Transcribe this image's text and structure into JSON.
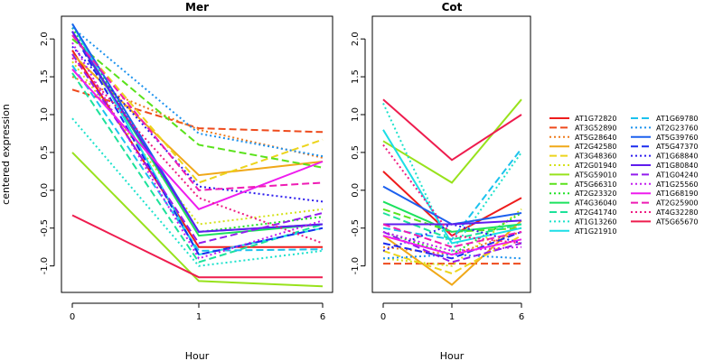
{
  "ylabel": "centered expression",
  "xlabel": "Hour",
  "chart_data": [
    {
      "type": "line",
      "title": "Mer",
      "xlabel": "Hour",
      "ylabel": "centered expression",
      "categories": [
        "0",
        "1",
        "6"
      ],
      "x": [
        0,
        1,
        6
      ],
      "ylim": [
        -1.35,
        2.3
      ],
      "yticks": [
        -1.0,
        -0.5,
        0.0,
        0.5,
        1.0,
        1.5,
        2.0
      ],
      "ytick_labels": [
        "-1.0",
        "-0.5",
        "0.0",
        "0.5",
        "1.0",
        "1.5",
        "2.0"
      ],
      "grid": false,
      "series": [
        {
          "name": "AT1G72820",
          "values": [
            1.85,
            -0.75,
            -0.75
          ]
        },
        {
          "name": "AT3G52890",
          "values": [
            1.33,
            0.82,
            0.77
          ]
        },
        {
          "name": "AT5G28640",
          "values": [
            1.5,
            0.8,
            0.43
          ]
        },
        {
          "name": "AT2G42580",
          "values": [
            1.8,
            0.2,
            0.38
          ]
        },
        {
          "name": "AT3G48360",
          "values": [
            2.05,
            0.1,
            0.67
          ]
        },
        {
          "name": "AT2G01940",
          "values": [
            1.7,
            -0.45,
            -0.25
          ]
        },
        {
          "name": "AT5G59010",
          "values": [
            0.5,
            -1.2,
            -1.27
          ]
        },
        {
          "name": "AT5G66310",
          "values": [
            2.0,
            0.6,
            0.3
          ]
        },
        {
          "name": "AT2G23320",
          "values": [
            2.15,
            -0.55,
            -0.35
          ]
        },
        {
          "name": "AT4G36040",
          "values": [
            2.1,
            -0.6,
            -0.45
          ]
        },
        {
          "name": "AT2G41740",
          "values": [
            1.55,
            -0.95,
            -0.45
          ]
        },
        {
          "name": "AT1G13260",
          "values": [
            0.95,
            -1.0,
            -0.8
          ]
        },
        {
          "name": "AT1G21910",
          "values": [
            2.2,
            -0.85,
            -0.5
          ]
        },
        {
          "name": "AT1G69780",
          "values": [
            1.65,
            -0.8,
            -0.78
          ]
        },
        {
          "name": "AT2G23760",
          "values": [
            2.15,
            0.75,
            0.45
          ]
        },
        {
          "name": "AT5G39760",
          "values": [
            2.2,
            -0.55,
            -0.45
          ]
        },
        {
          "name": "AT5G47370",
          "values": [
            2.1,
            -0.85,
            -0.5
          ]
        },
        {
          "name": "AT1G68840",
          "values": [
            1.9,
            0.05,
            -0.15
          ]
        },
        {
          "name": "AT1G80840",
          "values": [
            2.1,
            -0.55,
            -0.45
          ]
        },
        {
          "name": "AT1G04240",
          "values": [
            1.8,
            -0.7,
            -0.3
          ]
        },
        {
          "name": "AT1G25560",
          "values": [
            1.95,
            -0.9,
            -0.4
          ]
        },
        {
          "name": "AT1G68190",
          "values": [
            1.6,
            -0.25,
            0.38
          ]
        },
        {
          "name": "AT2G25900",
          "values": [
            2.05,
            0.0,
            0.1
          ]
        },
        {
          "name": "AT4G32280",
          "values": [
            1.75,
            -0.1,
            -0.7
          ]
        },
        {
          "name": "AT5G65670",
          "values": [
            -0.33,
            -1.15,
            -1.15
          ]
        }
      ]
    },
    {
      "type": "line",
      "title": "Cot",
      "xlabel": "Hour",
      "ylabel": "",
      "categories": [
        "0",
        "1",
        "6"
      ],
      "x": [
        0,
        1,
        6
      ],
      "ylim": [
        -1.35,
        2.3
      ],
      "yticks": [
        -1.0,
        -0.5,
        0.0,
        0.5,
        1.0,
        1.5,
        2.0
      ],
      "ytick_labels": [
        "-1.0",
        "-0.5",
        "0.0",
        "0.5",
        "1.0",
        "1.5",
        "2.0"
      ],
      "grid": false,
      "series": [
        {
          "name": "AT1G72820",
          "values": [
            0.25,
            -0.6,
            -0.1
          ]
        },
        {
          "name": "AT3G52890",
          "values": [
            -0.97,
            -0.97,
            -0.97
          ]
        },
        {
          "name": "AT5G28640",
          "values": [
            -0.75,
            -0.85,
            -0.55
          ]
        },
        {
          "name": "AT2G42580",
          "values": [
            -0.6,
            -1.25,
            -0.4
          ]
        },
        {
          "name": "AT3G48360",
          "values": [
            -0.8,
            -1.1,
            -0.6
          ]
        },
        {
          "name": "AT2G01940",
          "values": [
            -0.9,
            -1.0,
            -0.25
          ]
        },
        {
          "name": "AT5G59010",
          "values": [
            0.65,
            0.1,
            1.2
          ]
        },
        {
          "name": "AT5G66310",
          "values": [
            -0.25,
            -0.55,
            -0.5
          ]
        },
        {
          "name": "AT2G23320",
          "values": [
            -0.55,
            -0.85,
            -0.3
          ]
        },
        {
          "name": "AT4G36040",
          "values": [
            -0.15,
            -0.55,
            -0.45
          ]
        },
        {
          "name": "AT2G41740",
          "values": [
            -0.3,
            -0.65,
            -0.45
          ]
        },
        {
          "name": "AT1G13260",
          "values": [
            1.15,
            -0.8,
            0.5
          ]
        },
        {
          "name": "AT1G21910",
          "values": [
            0.8,
            -0.7,
            -0.5
          ]
        },
        {
          "name": "AT1G69780",
          "values": [
            -0.5,
            -0.65,
            0.55
          ]
        },
        {
          "name": "AT2G23760",
          "values": [
            -0.9,
            -0.85,
            -0.9
          ]
        },
        {
          "name": "AT5G39760",
          "values": [
            0.05,
            -0.45,
            -0.3
          ]
        },
        {
          "name": "AT5G47370",
          "values": [
            -0.7,
            -0.9,
            -0.55
          ]
        },
        {
          "name": "AT1G68840",
          "values": [
            -0.8,
            -0.45,
            -0.7
          ]
        },
        {
          "name": "AT1G80840",
          "values": [
            -0.45,
            -0.45,
            -0.4
          ]
        },
        {
          "name": "AT1G04240",
          "values": [
            -0.55,
            -0.95,
            -0.7
          ]
        },
        {
          "name": "AT1G25560",
          "values": [
            -0.55,
            -0.8,
            -0.75
          ]
        },
        {
          "name": "AT1G68190",
          "values": [
            -0.6,
            -0.85,
            -0.65
          ]
        },
        {
          "name": "AT2G25900",
          "values": [
            -0.45,
            -0.75,
            -0.55
          ]
        },
        {
          "name": "AT4G32280",
          "values": [
            0.6,
            -0.6,
            -0.7
          ]
        },
        {
          "name": "AT5G65670",
          "values": [
            1.2,
            0.4,
            1.0
          ]
        }
      ]
    }
  ],
  "legend": {
    "placement": "right",
    "entries": [
      {
        "name": "AT1G72820",
        "color": "#ee1c1c",
        "dash": "solid"
      },
      {
        "name": "AT3G52890",
        "color": "#ee4a1c",
        "dash": "long-dash"
      },
      {
        "name": "AT5G28640",
        "color": "#ee7a1c",
        "dash": "dotted"
      },
      {
        "name": "AT2G42580",
        "color": "#f0a818",
        "dash": "solid"
      },
      {
        "name": "AT3G48360",
        "color": "#ecd41c",
        "dash": "long-dash"
      },
      {
        "name": "AT2G01940",
        "color": "#d4e21c",
        "dash": "dotted"
      },
      {
        "name": "AT5G59010",
        "color": "#98e21c",
        "dash": "solid"
      },
      {
        "name": "AT5G66310",
        "color": "#5ae21c",
        "dash": "long-dash"
      },
      {
        "name": "AT2G23320",
        "color": "#22e228",
        "dash": "dotted"
      },
      {
        "name": "AT4G36040",
        "color": "#1ce25e",
        "dash": "solid"
      },
      {
        "name": "AT2G41740",
        "color": "#1ce29a",
        "dash": "long-dash"
      },
      {
        "name": "AT1G13260",
        "color": "#1ce2cc",
        "dash": "dotted"
      },
      {
        "name": "AT1G21910",
        "color": "#1cdee6",
        "dash": "solid"
      },
      {
        "name": "AT1G69780",
        "color": "#1cc2ee",
        "dash": "long-dash"
      },
      {
        "name": "AT2G23760",
        "color": "#1c92ee",
        "dash": "dotted"
      },
      {
        "name": "AT5G39760",
        "color": "#1c60ee",
        "dash": "solid"
      },
      {
        "name": "AT5G47370",
        "color": "#1c2cee",
        "dash": "long-dash"
      },
      {
        "name": "AT1G68840",
        "color": "#2c1cee",
        "dash": "dotted"
      },
      {
        "name": "AT1G80840",
        "color": "#601cee",
        "dash": "solid"
      },
      {
        "name": "AT1G04240",
        "color": "#921cee",
        "dash": "long-dash"
      },
      {
        "name": "AT1G25560",
        "color": "#c21cee",
        "dash": "dotted"
      },
      {
        "name": "AT1G68190",
        "color": "#ee1cee",
        "dash": "solid"
      },
      {
        "name": "AT2G25900",
        "color": "#ee1cb4",
        "dash": "long-dash"
      },
      {
        "name": "AT4G32280",
        "color": "#ee1c82",
        "dash": "dotted"
      },
      {
        "name": "AT5G65670",
        "color": "#ee1c4e",
        "dash": "solid"
      }
    ]
  }
}
